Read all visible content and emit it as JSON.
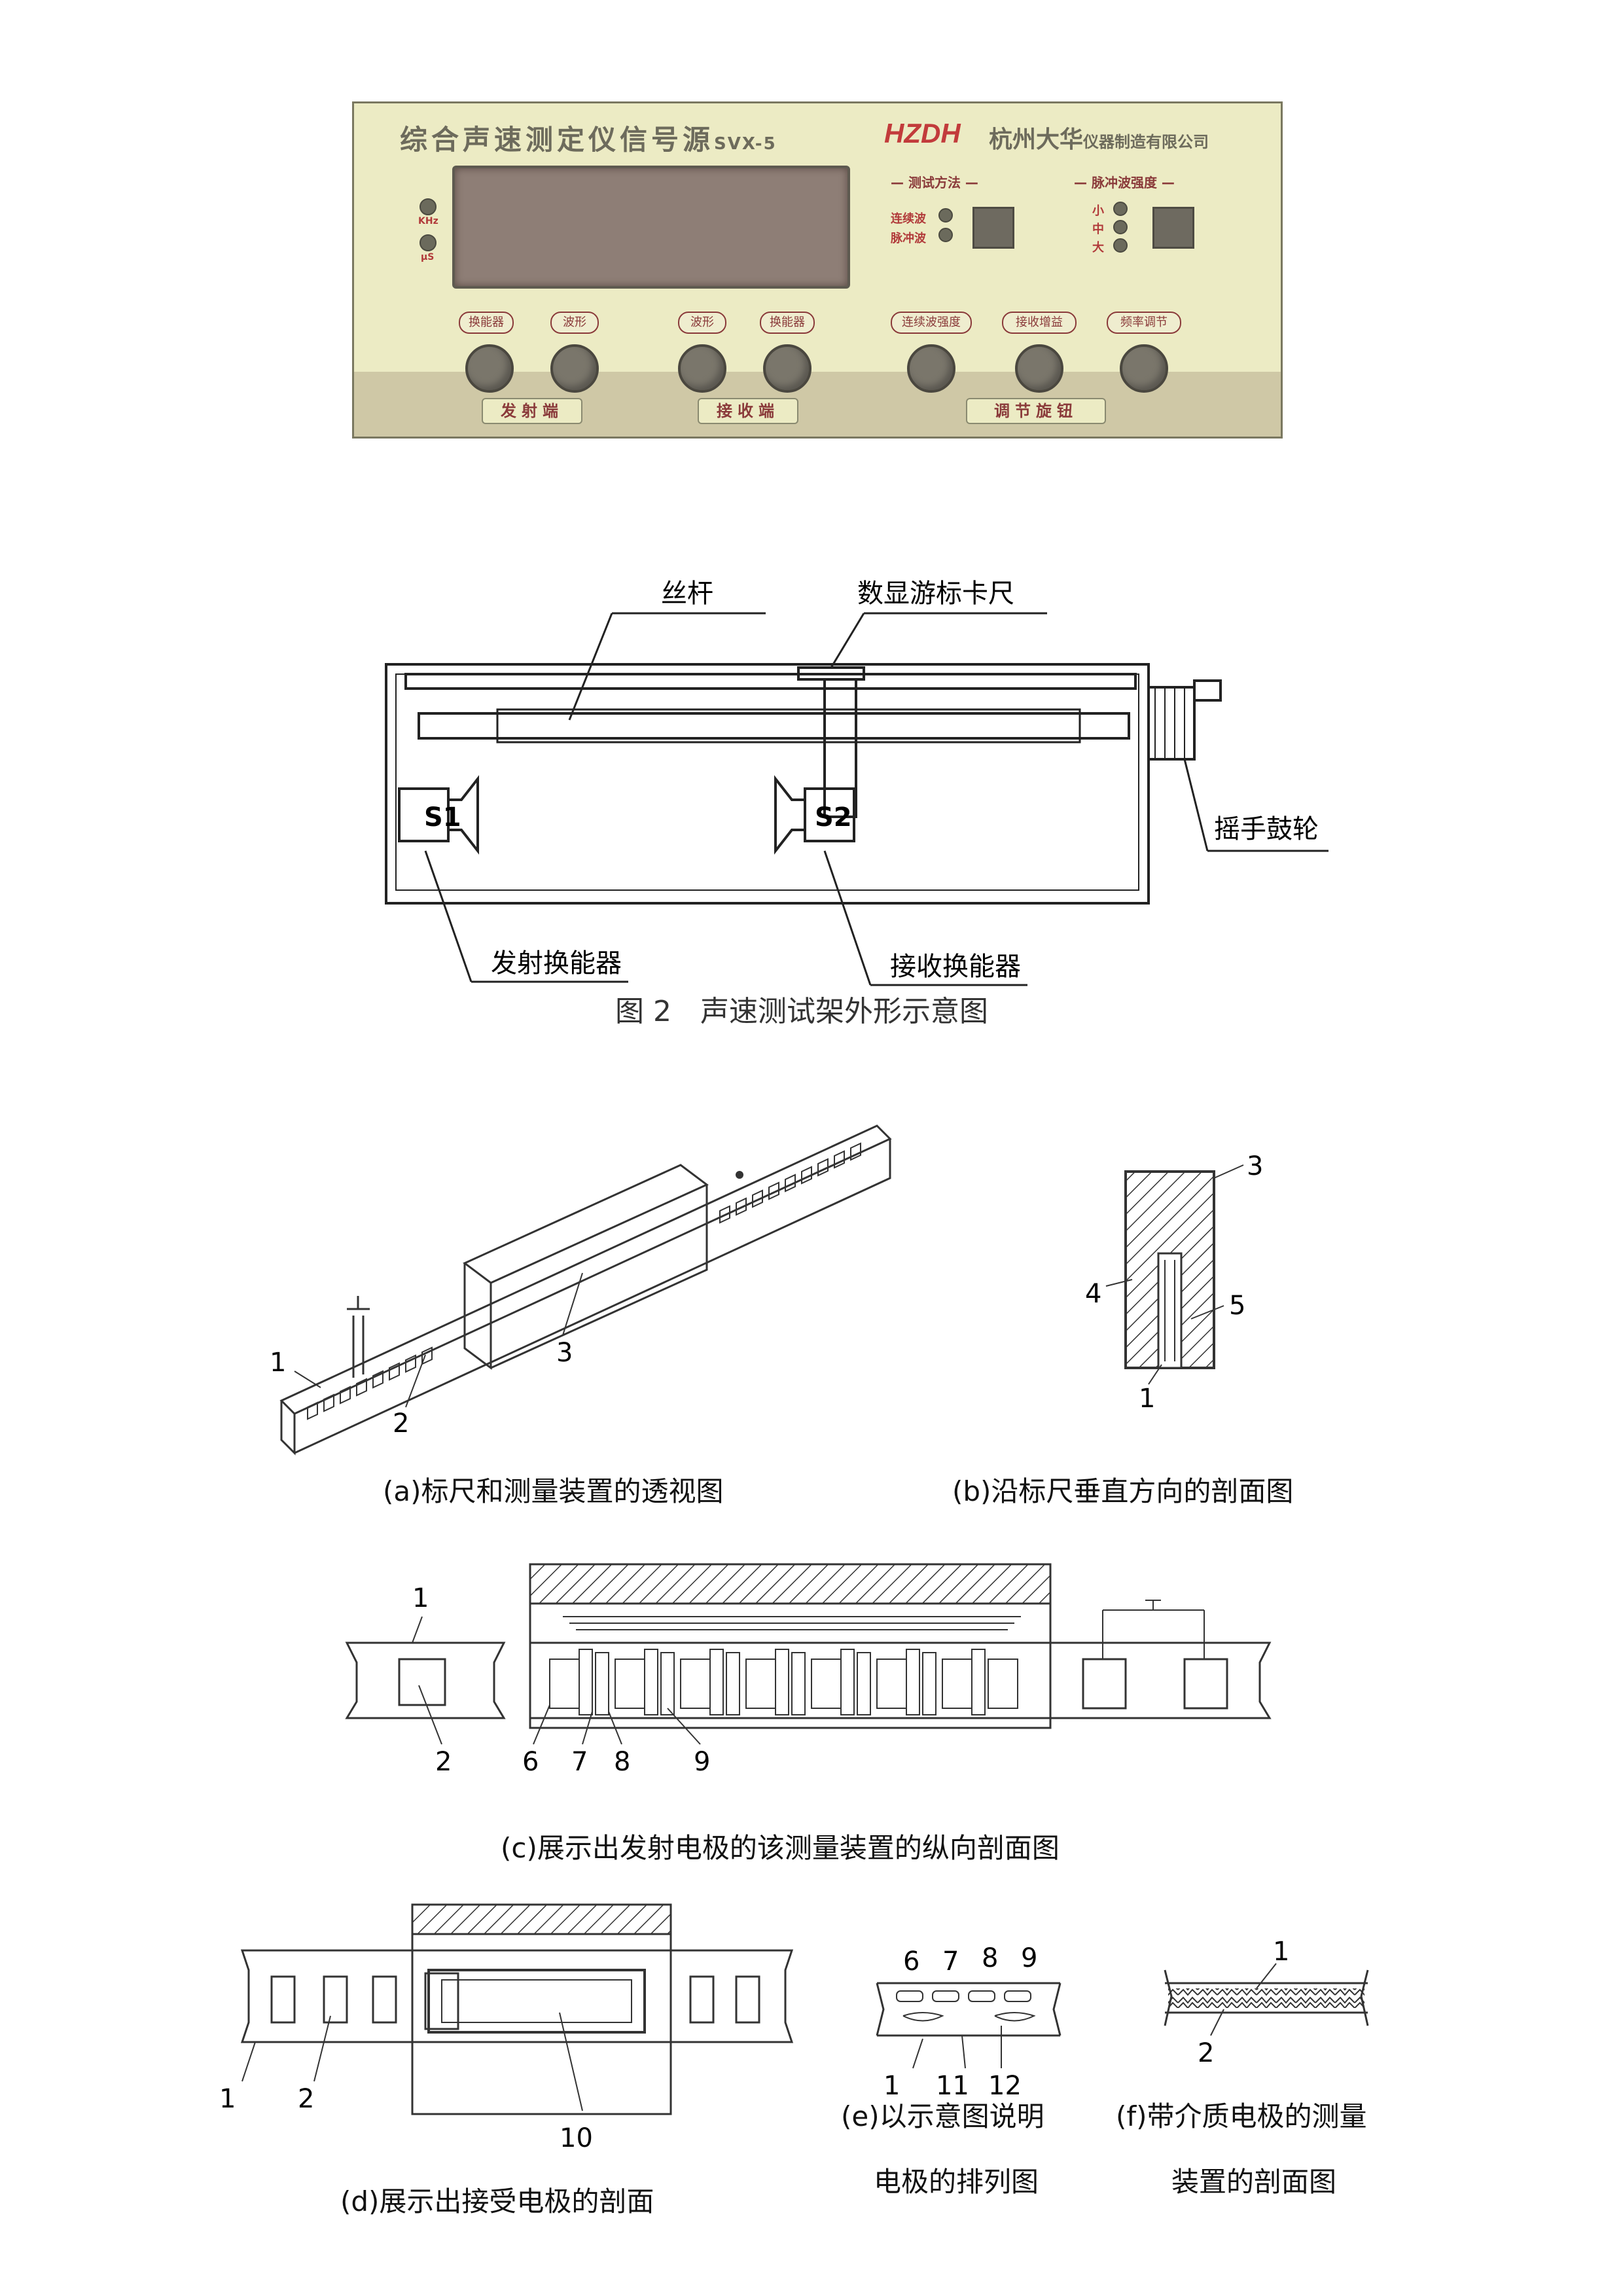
{
  "panel": {
    "title": "综合声速测定仪信号源",
    "model": "SVX-5",
    "brand": "HZDH",
    "company": "杭州大华",
    "company_suffix": "仪器制造有限公司",
    "led_labels": [
      "KHz",
      "μS"
    ],
    "test_method": {
      "label": "测试方法",
      "options": [
        "连续波",
        "脉冲波"
      ]
    },
    "pulse_strength": {
      "label": "脉冲波强度",
      "options": [
        "小",
        "中",
        "大"
      ]
    },
    "buttons": [
      "换能器",
      "波形",
      "波形",
      "换能器",
      "连续波强度",
      "接收增益",
      "频率调节"
    ],
    "groups": [
      "发射端",
      "接收端",
      "调节旋钮"
    ],
    "colors": {
      "panel_bg": "#ecebc4",
      "screen": "#8e7e76",
      "brand": "#c23b3b"
    }
  },
  "fig2": {
    "labels": {
      "lead_screw": "丝杆",
      "caliper": "数显游标卡尺",
      "crank": "摇手鼓轮",
      "transmitter": "发射换能器",
      "receiver": "接收换能器",
      "s1": "S1",
      "s2": "S2"
    },
    "caption": "图 2　声速测试架外形示意图"
  },
  "figs": {
    "a": {
      "caption": "(a)标尺和测量装置的透视图",
      "nums": [
        "1",
        "2",
        "3"
      ]
    },
    "b": {
      "caption": "(b)沿标尺垂直方向的剖面图",
      "nums": [
        "3",
        "4",
        "5",
        "1"
      ]
    },
    "c": {
      "caption": "(c)展示出发射电极的该测量装置的纵向剖面图",
      "nums": [
        "1",
        "2",
        "6",
        "7",
        "8",
        "9"
      ]
    },
    "d": {
      "caption": "(d)展示出接受电极的剖面",
      "nums": [
        "1",
        "2",
        "10"
      ]
    },
    "e": {
      "caption_line1": "(e)以示意图说明",
      "caption_line2": "电极的排列图",
      "nums": [
        "6",
        "7",
        "8",
        "9",
        "1",
        "11",
        "12"
      ]
    },
    "f": {
      "caption_line1": "(f)带介质电极的测量",
      "caption_line2": "装置的剖面图",
      "nums": [
        "1",
        "2"
      ]
    }
  }
}
